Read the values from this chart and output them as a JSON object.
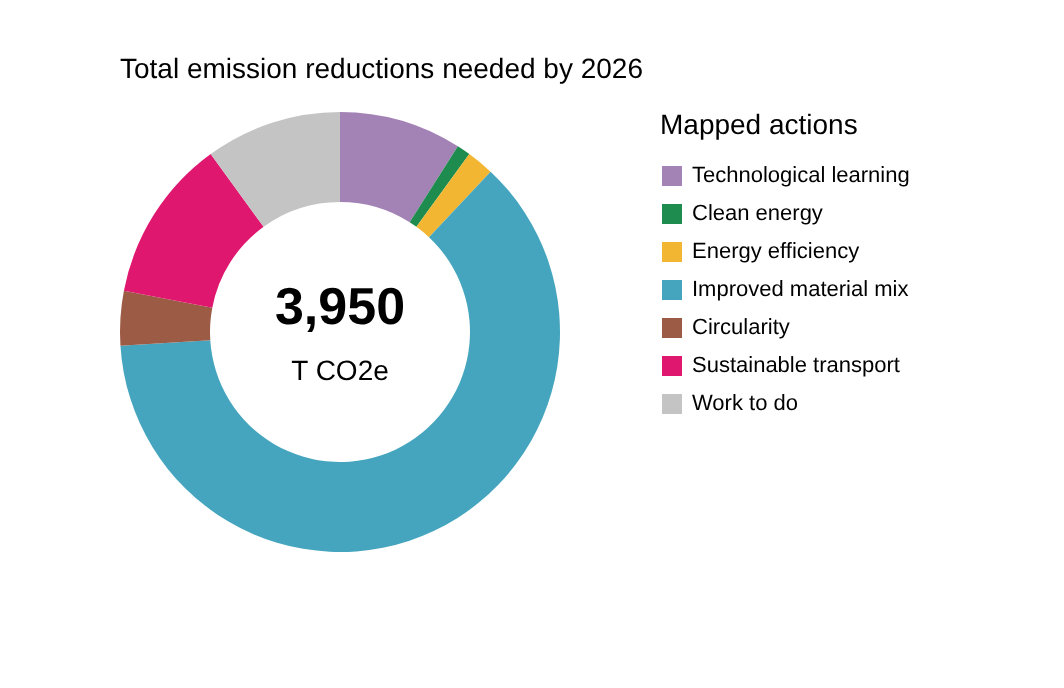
{
  "chart_data": {
    "type": "donut",
    "title": "Total emission reductions needed by  2026",
    "legend_title": "Mapped actions",
    "legend": "right",
    "categories": [
      "Technological learning",
      "Clean energy",
      "Energy efficiency",
      "Improved material mix",
      "Circularity",
      "Sustainable transport",
      "Work to do"
    ],
    "values": [
      9,
      1,
      2,
      62,
      4,
      12,
      10
    ],
    "colors": [
      "#a383b5",
      "#1e8c4e",
      "#f2b632",
      "#45a5bf",
      "#9b5b45",
      "#e0176f",
      "#c4c4c4"
    ],
    "annotations": [
      "3,950",
      "T CO2e"
    ]
  }
}
